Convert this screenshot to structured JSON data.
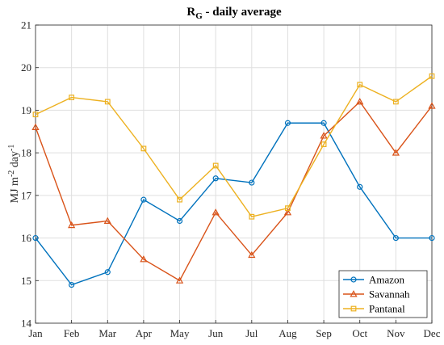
{
  "chart_data": {
    "type": "line",
    "title": "R",
    "title_subscript": "G",
    "title_suffix": " - daily average",
    "ylabel_main": "MJ m",
    "ylabel_sup1": "-2",
    "ylabel_mid": " day",
    "ylabel_sup2": "-1",
    "xlabel": "",
    "categories": [
      "Jan",
      "Feb",
      "Mar",
      "Apr",
      "May",
      "Jun",
      "Jul",
      "Aug",
      "Sep",
      "Oct",
      "Nov",
      "Dec"
    ],
    "ylim": [
      14,
      21
    ],
    "yticks": [
      14,
      15,
      16,
      17,
      18,
      19,
      20,
      21
    ],
    "grid": true,
    "legend_position": "bottom-right",
    "series": [
      {
        "name": "Amazon",
        "marker": "circle",
        "color": "#0072BD",
        "values": [
          16.0,
          14.9,
          15.2,
          16.9,
          16.4,
          17.4,
          17.3,
          18.7,
          18.7,
          17.2,
          16.0,
          16.0
        ]
      },
      {
        "name": "Savannah",
        "marker": "triangle",
        "color": "#D95319",
        "values": [
          18.6,
          16.3,
          16.4,
          15.5,
          15.0,
          16.6,
          15.6,
          16.6,
          18.4,
          19.2,
          18.0,
          19.1
        ]
      },
      {
        "name": "Pantanal",
        "marker": "square",
        "color": "#EDB120",
        "values": [
          18.9,
          19.3,
          19.2,
          18.1,
          16.9,
          17.7,
          16.5,
          16.7,
          18.2,
          19.6,
          19.2,
          19.8
        ]
      }
    ]
  }
}
